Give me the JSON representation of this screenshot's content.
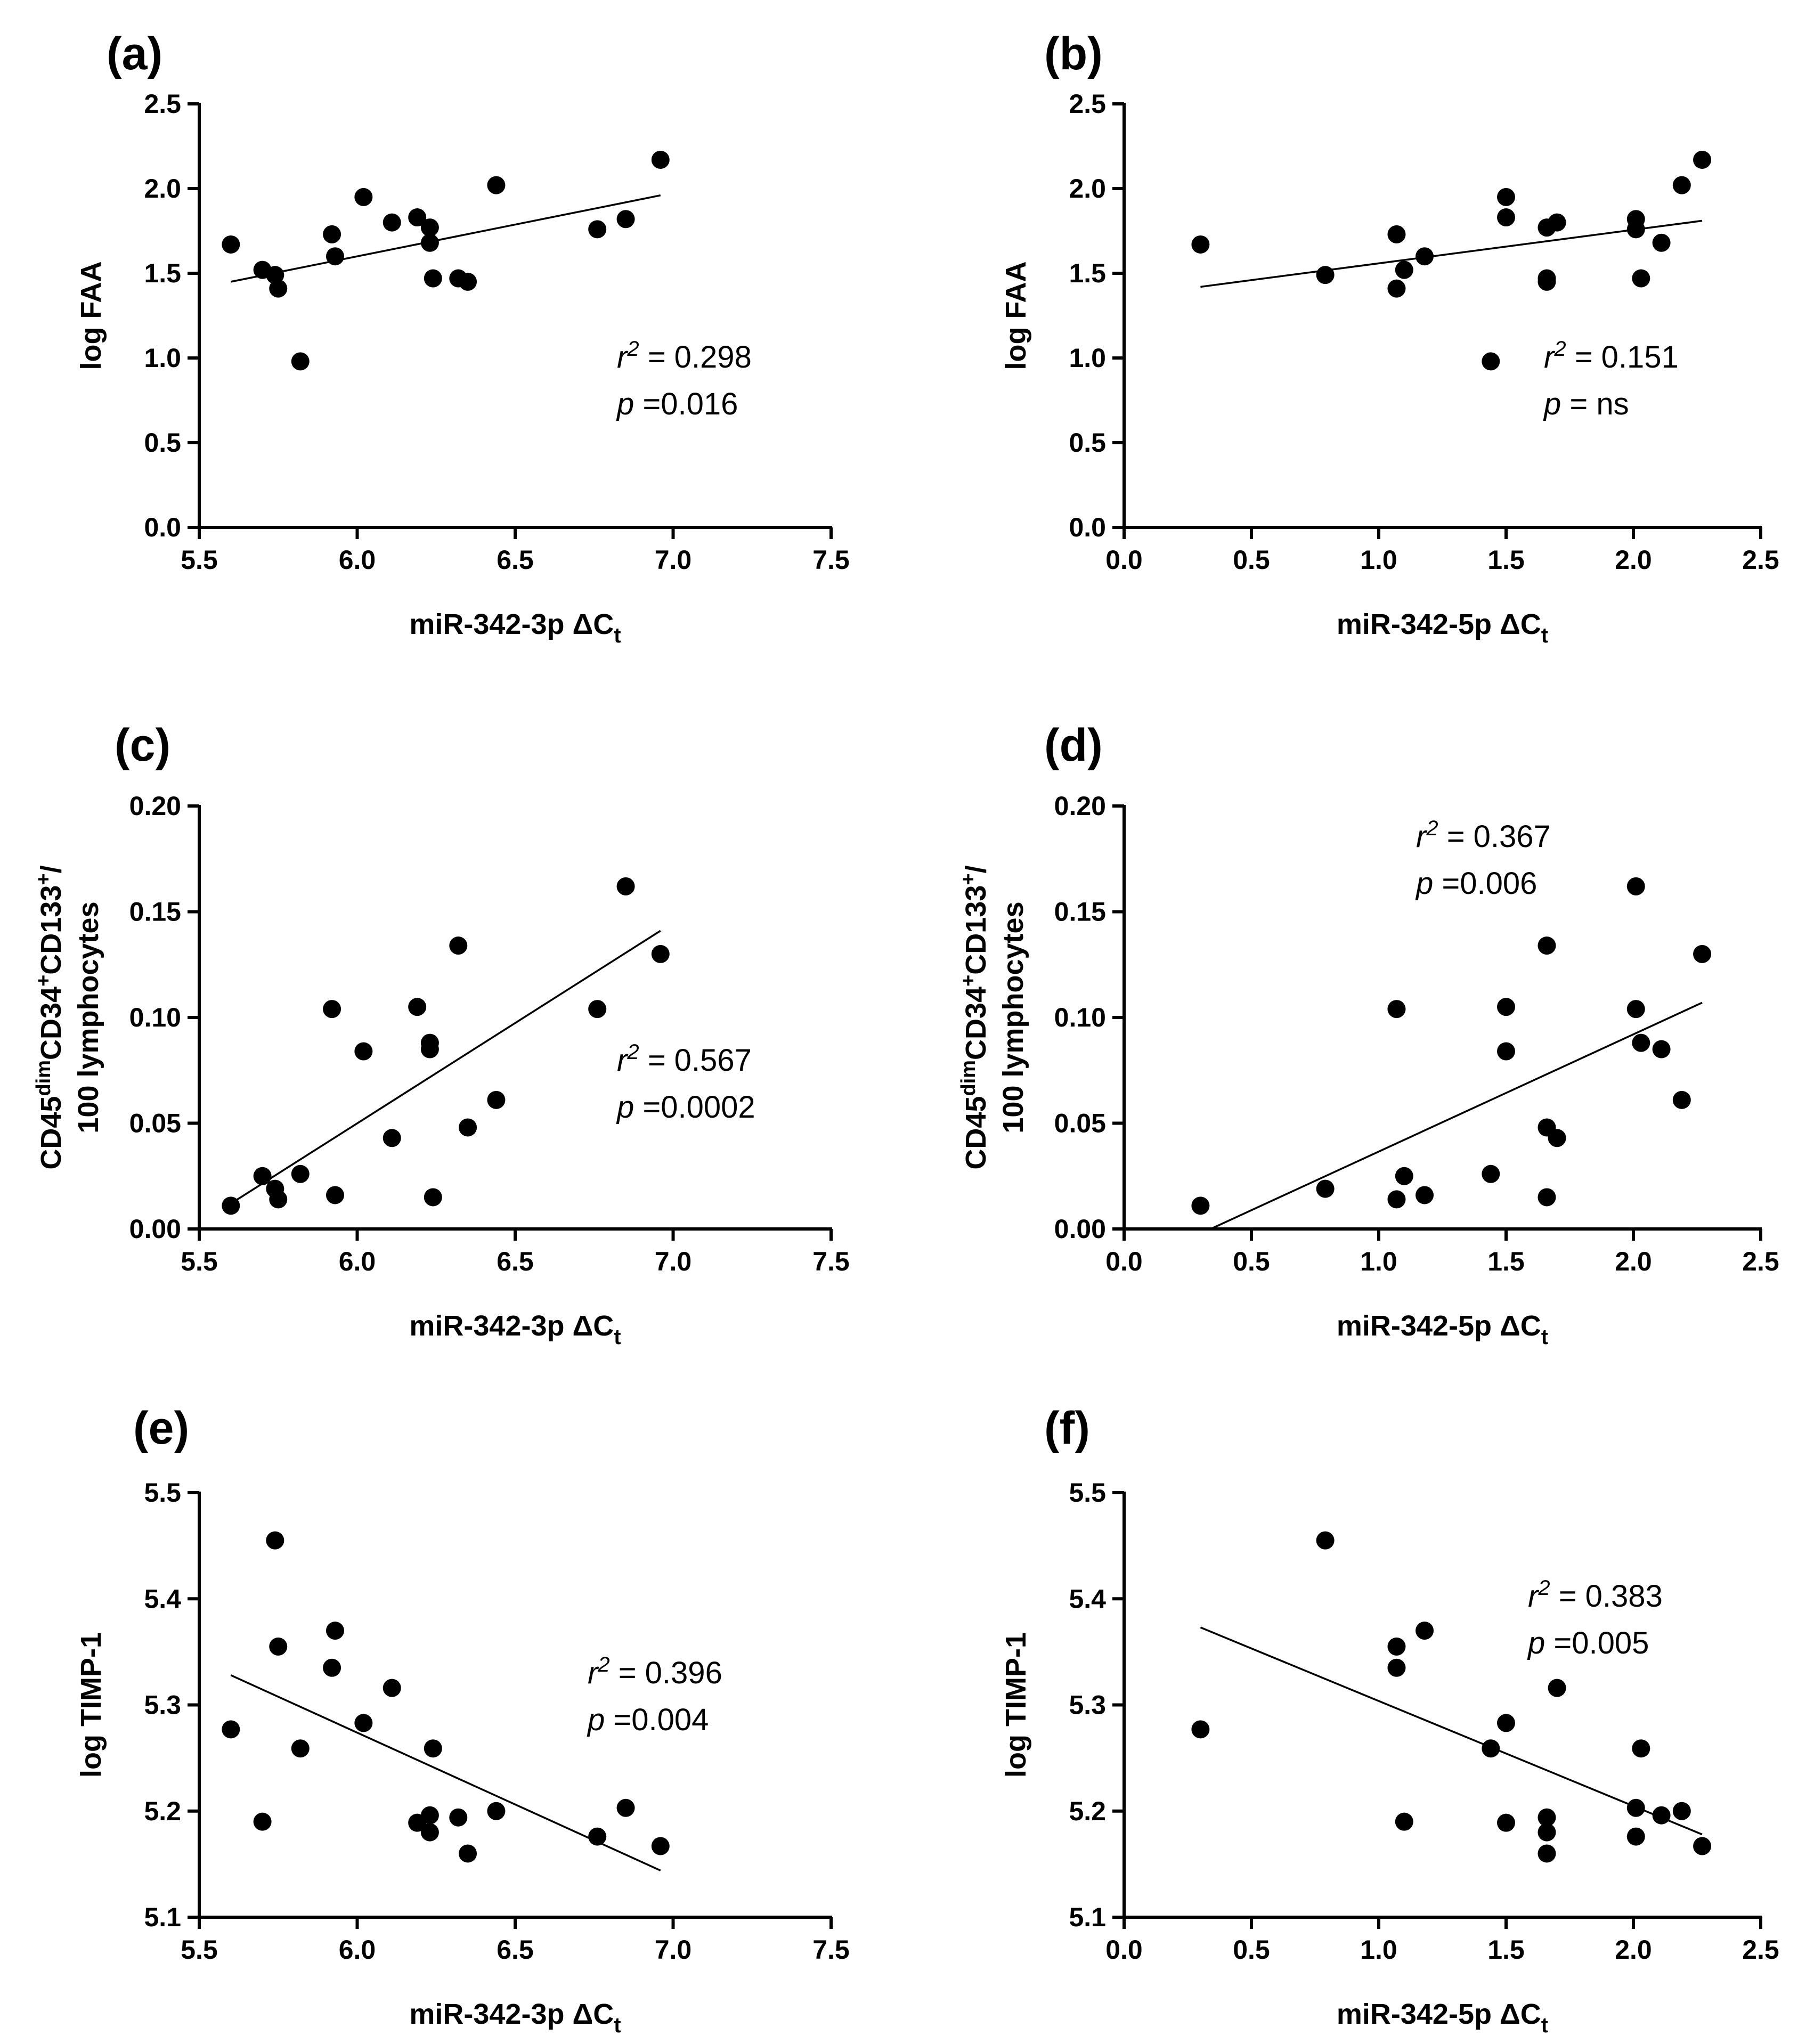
{
  "chart_data": [
    {
      "type": "scatter",
      "panel_label": "(a)",
      "xlabel": "miR-342-3p ΔC",
      "xlabel_sub": "t",
      "ylabel_lines": [
        "log FAA"
      ],
      "xlim": [
        5.5,
        7.5
      ],
      "ylim": [
        0.0,
        2.5
      ],
      "xticks": [
        "5.5",
        "6.0",
        "6.5",
        "7.0",
        "7.5"
      ],
      "yticks": [
        "0.0",
        "0.5",
        "1.0",
        "1.5",
        "2.0",
        "2.5"
      ],
      "points": [
        [
          5.6,
          1.67
        ],
        [
          5.7,
          1.52
        ],
        [
          5.74,
          1.49
        ],
        [
          5.75,
          1.41
        ],
        [
          5.82,
          0.98
        ],
        [
          5.92,
          1.73
        ],
        [
          5.93,
          1.6
        ],
        [
          6.02,
          1.95
        ],
        [
          6.11,
          1.8
        ],
        [
          6.19,
          1.83
        ],
        [
          6.23,
          1.77
        ],
        [
          6.23,
          1.68
        ],
        [
          6.24,
          1.47
        ],
        [
          6.32,
          1.47
        ],
        [
          6.35,
          1.45
        ],
        [
          6.44,
          2.02
        ],
        [
          6.76,
          1.76
        ],
        [
          6.85,
          1.82
        ],
        [
          6.96,
          2.17
        ]
      ],
      "fit": [
        [
          5.6,
          1.45
        ],
        [
          6.96,
          1.96
        ]
      ],
      "annotation": {
        "r2_label": "r",
        "r2_value": "= 0.298",
        "p_label": "p",
        "p_value": "=0.016"
      }
    },
    {
      "type": "scatter",
      "panel_label": "(b)",
      "xlabel": "miR-342-5p ΔC",
      "xlabel_sub": "t",
      "ylabel_lines": [
        "log FAA"
      ],
      "xlim": [
        0.0,
        2.5
      ],
      "ylim": [
        0.0,
        2.5
      ],
      "xticks": [
        "0.0",
        "0.5",
        "1.0",
        "1.5",
        "2.0",
        "2.5"
      ],
      "yticks": [
        "0.0",
        "0.5",
        "1.0",
        "1.5",
        "2.0",
        "2.5"
      ],
      "points": [
        [
          0.3,
          1.67
        ],
        [
          0.79,
          1.49
        ],
        [
          1.07,
          1.73
        ],
        [
          1.07,
          1.41
        ],
        [
          1.1,
          1.52
        ],
        [
          1.18,
          1.6
        ],
        [
          1.44,
          0.98
        ],
        [
          1.5,
          1.95
        ],
        [
          1.5,
          1.83
        ],
        [
          1.66,
          1.77
        ],
        [
          1.66,
          1.47
        ],
        [
          1.66,
          1.45
        ],
        [
          1.7,
          1.8
        ],
        [
          2.01,
          1.82
        ],
        [
          2.01,
          1.76
        ],
        [
          2.03,
          1.47
        ],
        [
          2.11,
          1.68
        ],
        [
          2.19,
          2.02
        ],
        [
          2.27,
          2.17
        ]
      ],
      "fit": [
        [
          0.3,
          1.42
        ],
        [
          2.27,
          1.81
        ]
      ],
      "annotation": {
        "r2_label": "r",
        "r2_value": "= 0.151",
        "p_label": "p",
        "p_value": "= ns"
      }
    },
    {
      "type": "scatter",
      "panel_label": "(c)",
      "xlabel": "miR-342-3p ΔC",
      "xlabel_sub": "t",
      "ylabel_lines": [
        "CD45dimCD34+CD133+/",
        "100 lymphocytes"
      ],
      "xlim": [
        5.5,
        7.5
      ],
      "ylim": [
        0.0,
        0.2
      ],
      "xticks": [
        "5.5",
        "6.0",
        "6.5",
        "7.0",
        "7.5"
      ],
      "yticks": [
        "0.00",
        "0.05",
        "0.10",
        "0.15",
        "0.20"
      ],
      "points": [
        [
          5.6,
          0.011
        ],
        [
          5.7,
          0.025
        ],
        [
          5.74,
          0.019
        ],
        [
          5.75,
          0.014
        ],
        [
          5.82,
          0.026
        ],
        [
          5.92,
          0.104
        ],
        [
          5.93,
          0.016
        ],
        [
          6.02,
          0.084
        ],
        [
          6.11,
          0.043
        ],
        [
          6.19,
          0.105
        ],
        [
          6.23,
          0.088
        ],
        [
          6.23,
          0.085
        ],
        [
          6.24,
          0.015
        ],
        [
          6.32,
          0.134
        ],
        [
          6.35,
          0.048
        ],
        [
          6.44,
          0.061
        ],
        [
          6.76,
          0.104
        ],
        [
          6.85,
          0.162
        ],
        [
          6.96,
          0.13
        ]
      ],
      "fit": [
        [
          5.6,
          0.012
        ],
        [
          6.96,
          0.141
        ]
      ],
      "annotation": {
        "r2_label": "r",
        "r2_value": "= 0.567",
        "p_label": "p",
        "p_value": "=0.0002"
      }
    },
    {
      "type": "scatter",
      "panel_label": "(d)",
      "xlabel": "miR-342-5p ΔC",
      "xlabel_sub": "t",
      "ylabel_lines": [
        "CD45dimCD34+CD133+/",
        "100 lymphocytes"
      ],
      "xlim": [
        0.0,
        2.5
      ],
      "ylim": [
        0.0,
        0.2
      ],
      "xticks": [
        "0.0",
        "0.5",
        "1.0",
        "1.5",
        "2.0",
        "2.5"
      ],
      "yticks": [
        "0.00",
        "0.05",
        "0.10",
        "0.15",
        "0.20"
      ],
      "points": [
        [
          0.3,
          0.011
        ],
        [
          0.79,
          0.019
        ],
        [
          1.07,
          0.104
        ],
        [
          1.07,
          0.014
        ],
        [
          1.1,
          0.025
        ],
        [
          1.18,
          0.016
        ],
        [
          1.44,
          0.026
        ],
        [
          1.5,
          0.105
        ],
        [
          1.5,
          0.084
        ],
        [
          1.66,
          0.134
        ],
        [
          1.66,
          0.048
        ],
        [
          1.66,
          0.015
        ],
        [
          1.7,
          0.043
        ],
        [
          2.01,
          0.162
        ],
        [
          2.01,
          0.104
        ],
        [
          2.03,
          0.088
        ],
        [
          2.11,
          0.085
        ],
        [
          2.19,
          0.061
        ],
        [
          2.27,
          0.13
        ]
      ],
      "fit": [
        [
          0.34,
          0.0
        ],
        [
          2.27,
          0.107
        ]
      ],
      "annotation": {
        "r2_label": "r",
        "r2_value": "= 0.367",
        "p_label": "p",
        "p_value": "=0.006"
      }
    },
    {
      "type": "scatter",
      "panel_label": "(e)",
      "xlabel": "miR-342-3p ΔC",
      "xlabel_sub": "t",
      "ylabel_lines": [
        "log TIMP-1"
      ],
      "xlim": [
        5.5,
        7.5
      ],
      "ylim": [
        5.1,
        5.5
      ],
      "xticks": [
        "5.5",
        "6.0",
        "6.5",
        "7.0",
        "7.5"
      ],
      "yticks": [
        "5.1",
        "5.2",
        "5.3",
        "5.4",
        "5.5"
      ],
      "points": [
        [
          5.6,
          5.277
        ],
        [
          5.7,
          5.19
        ],
        [
          5.74,
          5.455
        ],
        [
          5.75,
          5.355
        ],
        [
          5.82,
          5.259
        ],
        [
          5.92,
          5.335
        ],
        [
          5.93,
          5.37
        ],
        [
          6.02,
          5.283
        ],
        [
          6.11,
          5.316
        ],
        [
          6.19,
          5.189
        ],
        [
          6.23,
          5.196
        ],
        [
          6.23,
          5.18
        ],
        [
          6.24,
          5.259
        ],
        [
          6.32,
          5.194
        ],
        [
          6.35,
          5.16
        ],
        [
          6.44,
          5.2
        ],
        [
          6.76,
          5.176
        ],
        [
          6.85,
          5.203
        ],
        [
          6.96,
          5.167
        ]
      ],
      "fit": [
        [
          5.6,
          5.328
        ],
        [
          6.96,
          5.144
        ]
      ],
      "annotation": {
        "r2_label": "r",
        "r2_value": "= 0.396",
        "p_label": "p",
        "p_value": "=0.004"
      }
    },
    {
      "type": "scatter",
      "panel_label": "(f)",
      "xlabel": "miR-342-5p ΔC",
      "xlabel_sub": "t",
      "ylabel_lines": [
        "log TIMP-1"
      ],
      "xlim": [
        0.0,
        2.5
      ],
      "ylim": [
        5.1,
        5.5
      ],
      "xticks": [
        "0.0",
        "0.5",
        "1.0",
        "1.5",
        "2.0",
        "2.5"
      ],
      "yticks": [
        "5.1",
        "5.2",
        "5.3",
        "5.4",
        "5.5"
      ],
      "points": [
        [
          0.3,
          5.277
        ],
        [
          0.79,
          5.455
        ],
        [
          1.07,
          5.355
        ],
        [
          1.07,
          5.335
        ],
        [
          1.1,
          5.19
        ],
        [
          1.18,
          5.37
        ],
        [
          1.44,
          5.259
        ],
        [
          1.5,
          5.283
        ],
        [
          1.5,
          5.189
        ],
        [
          1.66,
          5.194
        ],
        [
          1.66,
          5.18
        ],
        [
          1.66,
          5.16
        ],
        [
          1.7,
          5.316
        ],
        [
          2.01,
          5.203
        ],
        [
          2.01,
          5.176
        ],
        [
          2.03,
          5.259
        ],
        [
          2.11,
          5.196
        ],
        [
          2.19,
          5.2
        ],
        [
          2.27,
          5.167
        ]
      ],
      "fit": [
        [
          0.3,
          5.373
        ],
        [
          2.27,
          5.178
        ]
      ],
      "annotation": {
        "r2_label": "r",
        "r2_value": "= 0.383",
        "p_label": "p",
        "p_value": "=0.005"
      }
    }
  ]
}
